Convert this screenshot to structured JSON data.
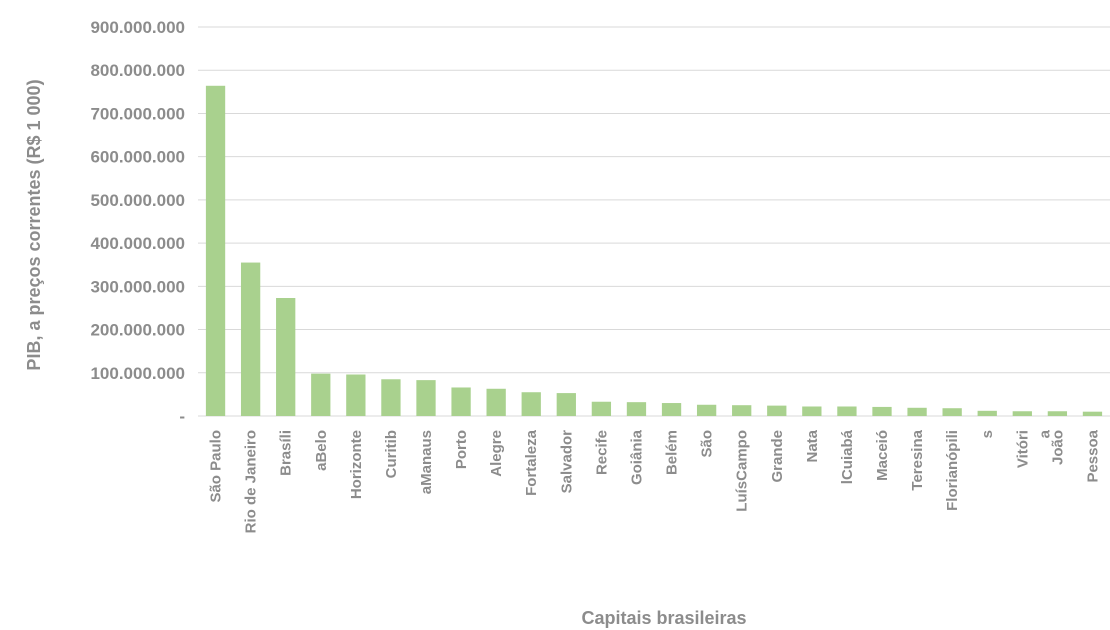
{
  "chart_data": {
    "type": "bar",
    "ylabel": "PIB, a preços correntes (R$ 1 000)",
    "xlabel": "Capitais brasileiras",
    "ylim": [
      0,
      900000000
    ],
    "yticks": [
      {
        "value": 0,
        "label": "-"
      },
      {
        "value": 100000000,
        "label": "100.000.000"
      },
      {
        "value": 200000000,
        "label": "200.000.000"
      },
      {
        "value": 300000000,
        "label": "300.000.000"
      },
      {
        "value": 400000000,
        "label": "400.000.000"
      },
      {
        "value": 500000000,
        "label": "500.000.000"
      },
      {
        "value": 600000000,
        "label": "600.000.000"
      },
      {
        "value": 700000000,
        "label": "700.000.000"
      },
      {
        "value": 800000000,
        "label": "800.000.000"
      },
      {
        "value": 900000000,
        "label": "900.000.000"
      }
    ],
    "grid": true,
    "bar_color": "#a9d18e",
    "categories": [
      [
        "São Paulo"
      ],
      [
        "Rio de Janeiro"
      ],
      [
        "Brasíli"
      ],
      [
        "aBelo"
      ],
      [
        "Horizonte"
      ],
      [
        "Curitib"
      ],
      [
        "aManaus"
      ],
      [
        "Porto"
      ],
      [
        "Alegre"
      ],
      [
        "Fortaleza"
      ],
      [
        "Salvador"
      ],
      [
        "Recife"
      ],
      [
        "Goiânia"
      ],
      [
        "Belém"
      ],
      [
        "São"
      ],
      [
        "LuísCampo"
      ],
      [
        "Grande"
      ],
      [
        "Nata"
      ],
      [
        "lCuiabá"
      ],
      [
        "Maceió"
      ],
      [
        "Teresina"
      ],
      [
        "Florianópili"
      ],
      [
        "s"
      ],
      [
        "Vitóri",
        "a"
      ],
      [
        "João"
      ],
      [
        "Pessoa"
      ]
    ],
    "values": [
      764000000,
      355000000,
      273000000,
      98000000,
      96000000,
      85000000,
      83000000,
      66000000,
      63000000,
      55000000,
      53000000,
      33000000,
      32000000,
      30000000,
      26000000,
      25000000,
      24000000,
      22000000,
      22000000,
      21000000,
      19000000,
      18000000,
      12000000,
      11000000,
      11000000,
      10000000
    ]
  }
}
